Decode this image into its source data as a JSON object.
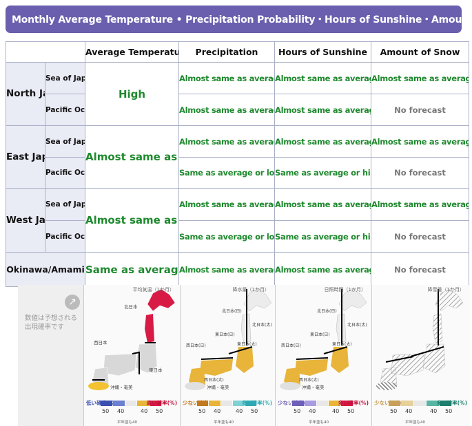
{
  "banner": {
    "title": "Monthly Average Temperature • Precipitation Probability・Hours of Sunshine・Amount of Snow"
  },
  "columns": [
    "Average Temperature",
    "Precipitation",
    "Hours of Sunshine",
    "Amount of Snow"
  ],
  "regions": {
    "north": {
      "name": "North Japan",
      "temperature": "High",
      "japan_side": {
        "label": "Sea of Japan Side",
        "precipitation": "Almost same as average",
        "sunshine": "Almost same as average",
        "snow": "Almost same as average"
      },
      "pacific_side": {
        "label": "Pacific Ocean Side",
        "precipitation": "Almost same as average",
        "sunshine": "Almost same as average",
        "snow": "No forecast"
      }
    },
    "east": {
      "name": "East Japan",
      "temperature": "Almost same as average",
      "japan_side": {
        "label": "Sea of Japan Side",
        "precipitation": "Almost same as average",
        "sunshine": "Almost same as average",
        "snow": "Almost same as average"
      },
      "pacific_side": {
        "label": "Pacific Ocean Side",
        "precipitation": "Same as average or low",
        "sunshine": "Same as average or high",
        "snow": "No forecast"
      }
    },
    "west": {
      "name": "West Japan",
      "temperature": "Almost same as average",
      "japan_side": {
        "label": "Sea of Japan Side",
        "precipitation": "Almost same as average",
        "sunshine": "Almost same as average",
        "snow": "Almost same as average"
      },
      "pacific_side": {
        "label": "Pacific Ocean Side",
        "precipitation": "Same as average or low",
        "sunshine": "Same as average or high",
        "snow": "No forecast"
      }
    },
    "okinawa": {
      "name": "Okinawa/Amami",
      "temperature": "Same as average or high",
      "precipitation": "Almost same as average",
      "sunshine": "Almost same as average",
      "snow": "No forecast"
    }
  },
  "maps": {
    "note": "数値は予想される出現確率です",
    "titles": [
      "平均気温（1か月）",
      "降水量（1か月）",
      "日照時間（1か月）",
      "降雪量（1か月）"
    ],
    "region_labels": {
      "north": "北日本",
      "east": "東日本",
      "west": "西日本",
      "north_j": "北日本(日)",
      "north_p": "北日本(太)",
      "east_j": "東日本(日)",
      "east_p": "東日本(太)",
      "west_j": "西日本(日)",
      "west_p": "西日本(太)",
      "okinawa": "沖縄・奄美"
    },
    "legend": {
      "low_temp": "低い確率(%)",
      "high_temp": "高い確率(%)",
      "low_amount": "少ない確率(%)",
      "high_amount": "多い確率(%)",
      "ticks": [
        "50",
        "40",
        "40",
        "50"
      ],
      "above": "以上",
      "normal_note": "平年並も40"
    },
    "colors": {
      "temp_low": "#3a4fb0",
      "temp_high": "#d81b45",
      "wet": "#2fa9b3",
      "dry": "#c2781c",
      "sunny": "#e8b43a",
      "dull": "#6d5fb8",
      "snow_more": "#1d7f6e",
      "snow_less": "#c7a15b",
      "okinawa_fill": "#f2c230"
    }
  }
}
